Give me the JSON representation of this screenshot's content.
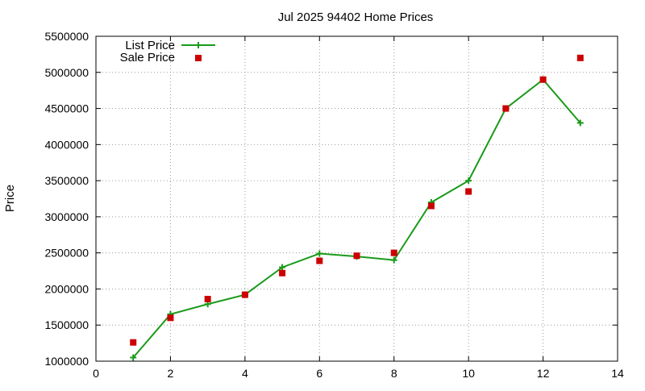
{
  "chart_data": {
    "type": "line",
    "title": "Jul 2025 94402 Home Prices",
    "xlabel": "",
    "ylabel": "Price",
    "xlim": [
      0,
      14
    ],
    "ylim": [
      1000000,
      5500000
    ],
    "xticks": [
      0,
      2,
      4,
      6,
      8,
      10,
      12,
      14
    ],
    "yticks": [
      1000000,
      1500000,
      2000000,
      2500000,
      3000000,
      3500000,
      4000000,
      4500000,
      5000000,
      5500000
    ],
    "xtick_labels": [
      "0",
      "2",
      "4",
      "6",
      "8",
      "10",
      "12",
      "14"
    ],
    "ytick_labels": [
      "1000000",
      "1500000",
      "2000000",
      "2500000",
      "3000000",
      "3500000",
      "4000000",
      "4500000",
      "5000000",
      "5500000"
    ],
    "grid": true,
    "legend_position": "top-left",
    "series": [
      {
        "name": "List Price",
        "style": "line-with-plus-markers",
        "color": "#1a9a1a",
        "x": [
          1,
          2,
          3,
          4,
          5,
          6,
          7,
          8,
          9,
          10,
          11,
          12,
          13
        ],
        "y": [
          1050000,
          1650000,
          1790000,
          1920000,
          2300000,
          2490000,
          2450000,
          2400000,
          3200000,
          3500000,
          4500000,
          4900000,
          4300000
        ]
      },
      {
        "name": "Sale Price",
        "style": "square-markers",
        "color": "#cc0000",
        "x": [
          1,
          2,
          3,
          4,
          5,
          6,
          7,
          8,
          9,
          10,
          11,
          12,
          13
        ],
        "y": [
          1260000,
          1600000,
          1860000,
          1920000,
          2220000,
          2390000,
          2460000,
          2500000,
          3150000,
          3350000,
          4500000,
          4900000,
          5200000
        ]
      }
    ]
  }
}
